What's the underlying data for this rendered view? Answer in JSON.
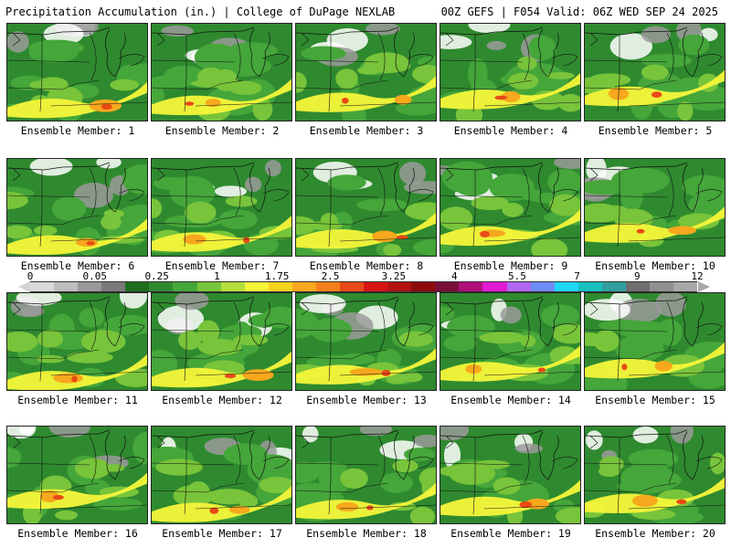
{
  "header": {
    "left": "Precipitation Accumulation (in.) | College of DuPage NEXLAB",
    "right": "00Z GEFS | F054 Valid: 06Z WED SEP 24 2025"
  },
  "members": [
    "Ensemble Member: 1",
    "Ensemble Member: 2",
    "Ensemble Member: 3",
    "Ensemble Member: 4",
    "Ensemble Member: 5",
    "Ensemble Member: 6",
    "Ensemble Member: 7",
    "Ensemble Member: 8",
    "Ensemble Member: 9",
    "Ensemble Member: 10",
    "Ensemble Member: 11",
    "Ensemble Member: 12",
    "Ensemble Member: 13",
    "Ensemble Member: 14",
    "Ensemble Member: 15",
    "Ensemble Member: 16",
    "Ensemble Member: 17",
    "Ensemble Member: 18",
    "Ensemble Member: 19",
    "Ensemble Member: 20"
  ],
  "colorbar": {
    "ticks": [
      "0",
      "0.05",
      "0.25",
      "1",
      "1.75",
      "2.5",
      "3.25",
      "4",
      "5.5",
      "7",
      "9",
      "12"
    ],
    "colors": [
      "#d9d9d9",
      "#bdbdbd",
      "#9a9a9a",
      "#7a7a7a",
      "#1f6e1f",
      "#2f8a2f",
      "#45a63a",
      "#78c43a",
      "#b5dd3c",
      "#f5f53a",
      "#f7d21d",
      "#f7a81d",
      "#f37f1a",
      "#e94b17",
      "#d81414",
      "#b31212",
      "#8c0b0b",
      "#7a0f3a",
      "#b0107a",
      "#e01bd3",
      "#b066f0",
      "#6e8cf5",
      "#1ed6f5",
      "#18bfbf",
      "#2f9f9f",
      "#6e6e6e",
      "#909090",
      "#a8a8a8"
    ]
  },
  "map_colors": {
    "green_dark": "#2f8a2f",
    "green_mid": "#45a63a",
    "green_light": "#78c43a",
    "lime": "#b5dd3c",
    "yellow": "#f5f53a",
    "orange": "#f7a81d",
    "red": "#e94b17",
    "gray": "#9a9a9a",
    "white": "#ffffff"
  }
}
